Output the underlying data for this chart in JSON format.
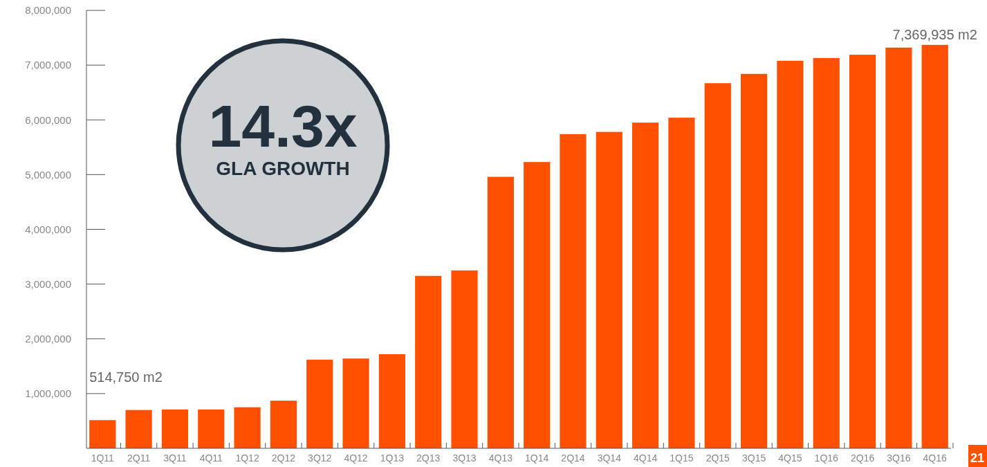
{
  "chart_data": {
    "type": "bar",
    "categories": [
      "1Q11",
      "2Q11",
      "3Q11",
      "4Q11",
      "1Q12",
      "2Q12",
      "3Q12",
      "4Q12",
      "1Q13",
      "2Q13",
      "3Q13",
      "4Q13",
      "1Q14",
      "2Q14",
      "3Q14",
      "4Q14",
      "1Q15",
      "2Q15",
      "3Q15",
      "4Q15",
      "1Q16",
      "2Q16",
      "3Q16",
      "4Q16"
    ],
    "values": [
      514750,
      700000,
      710000,
      710000,
      750000,
      870000,
      1620000,
      1640000,
      1720000,
      3150000,
      3250000,
      4960000,
      5230000,
      5740000,
      5780000,
      5950000,
      6040000,
      6670000,
      6840000,
      7080000,
      7130000,
      7190000,
      7320000,
      7369935
    ],
    "value_labels": [
      "514,750 m2",
      null,
      null,
      null,
      null,
      null,
      null,
      null,
      null,
      null,
      null,
      null,
      null,
      null,
      null,
      null,
      null,
      null,
      null,
      null,
      null,
      null,
      null,
      "7,369,935 m2"
    ],
    "color": "#ff5000",
    "ylim": [
      0,
      8000000
    ],
    "yticks": [
      {
        "value": 1000000,
        "label": "1,000,000"
      },
      {
        "value": 2000000,
        "label": "2,000,000"
      },
      {
        "value": 3000000,
        "label": "3,000,000"
      },
      {
        "value": 4000000,
        "label": "4,000,000"
      },
      {
        "value": 5000000,
        "label": "5,000,000"
      },
      {
        "value": 6000000,
        "label": "6,000,000"
      },
      {
        "value": 7000000,
        "label": "7,000,000"
      },
      {
        "value": 8000000,
        "label": "8,000,000"
      }
    ],
    "grid": false,
    "annotations": [
      "14.3x",
      "GLA GROWTH",
      "21"
    ]
  }
}
